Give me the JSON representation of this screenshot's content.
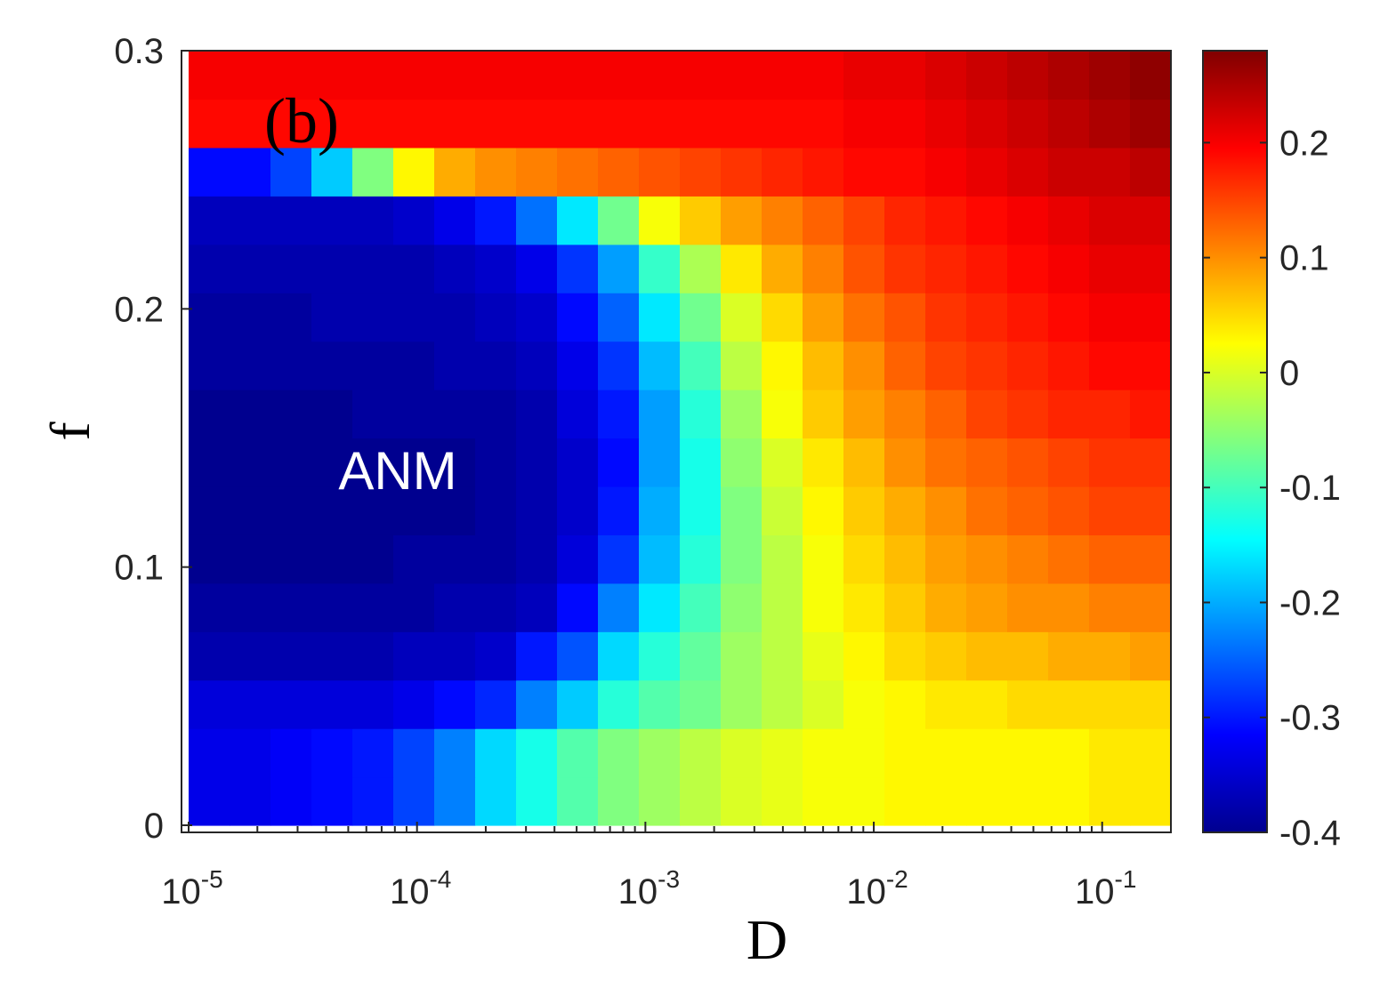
{
  "chart_data": {
    "type": "heatmap",
    "panel_label": "(b)",
    "region_label": "ANM",
    "xlabel": "D",
    "ylabel": "f",
    "x_scale": "log",
    "xlim": [
      1e-05,
      0.2
    ],
    "ylim": [
      0,
      0.3
    ],
    "x_ticks": [
      {
        "value": 1e-05,
        "base": "10",
        "exp": "-5"
      },
      {
        "value": 0.0001,
        "base": "10",
        "exp": "-4"
      },
      {
        "value": 0.001,
        "base": "10",
        "exp": "-3"
      },
      {
        "value": 0.01,
        "base": "10",
        "exp": "-2"
      },
      {
        "value": 0.1,
        "base": "10",
        "exp": "-1"
      }
    ],
    "y_ticks": [
      {
        "value": 0,
        "label": "0"
      },
      {
        "value": 0.1,
        "label": "0.1"
      },
      {
        "value": 0.2,
        "label": "0.2"
      },
      {
        "value": 0.3,
        "label": "0.3"
      }
    ],
    "colorbar": {
      "colormap": "jet",
      "range": [
        -0.4,
        0.28
      ],
      "ticks": [
        {
          "value": -0.4,
          "label": "-0.4"
        },
        {
          "value": -0.3,
          "label": "-0.3"
        },
        {
          "value": -0.2,
          "label": "-0.2"
        },
        {
          "value": -0.1,
          "label": "-0.1"
        },
        {
          "value": 0,
          "label": "0"
        },
        {
          "value": 0.1,
          "label": "0.1"
        },
        {
          "value": 0.2,
          "label": "0.2"
        }
      ]
    },
    "rows_f": [
      0.0,
      0.02,
      0.04,
      0.06,
      0.08,
      0.1,
      0.12,
      0.14,
      0.16,
      0.18,
      0.2,
      0.22,
      0.24,
      0.26,
      0.28,
      0.3
    ],
    "cols_D": [
      1e-05,
      1.55e-05,
      2.4e-05,
      3.7e-05,
      5.7e-05,
      8.8e-05,
      0.000136,
      0.00021,
      0.000325,
      0.0005,
      0.00078,
      0.0012,
      0.00186,
      0.00288,
      0.00445,
      0.0069,
      0.0107,
      0.0165,
      0.0255,
      0.0395,
      0.061,
      0.094,
      0.145,
      0.2
    ],
    "z": [
      [
        -0.33,
        -0.33,
        -0.32,
        -0.31,
        -0.3,
        -0.27,
        -0.23,
        -0.17,
        -0.13,
        -0.09,
        -0.06,
        -0.04,
        -0.02,
        0.0,
        0.01,
        0.02,
        0.02,
        0.03,
        0.03,
        0.03,
        0.03,
        0.03,
        0.04,
        0.04
      ],
      [
        -0.33,
        -0.33,
        -0.32,
        -0.31,
        -0.3,
        -0.27,
        -0.23,
        -0.17,
        -0.13,
        -0.09,
        -0.06,
        -0.04,
        -0.02,
        0.0,
        0.01,
        0.02,
        0.02,
        0.03,
        0.03,
        0.03,
        0.03,
        0.03,
        0.04,
        0.04
      ],
      [
        -0.34,
        -0.34,
        -0.34,
        -0.34,
        -0.34,
        -0.33,
        -0.31,
        -0.29,
        -0.23,
        -0.18,
        -0.12,
        -0.09,
        -0.07,
        -0.04,
        -0.02,
        0.0,
        0.02,
        0.03,
        0.04,
        0.04,
        0.05,
        0.05,
        0.05,
        0.05
      ],
      [
        -0.37,
        -0.37,
        -0.37,
        -0.37,
        -0.37,
        -0.36,
        -0.36,
        -0.35,
        -0.3,
        -0.26,
        -0.17,
        -0.12,
        -0.08,
        -0.04,
        -0.02,
        0.01,
        0.03,
        0.05,
        0.06,
        0.07,
        0.07,
        0.08,
        0.08,
        0.09
      ],
      [
        -0.38,
        -0.38,
        -0.38,
        -0.38,
        -0.38,
        -0.38,
        -0.37,
        -0.37,
        -0.36,
        -0.31,
        -0.23,
        -0.16,
        -0.1,
        -0.05,
        -0.02,
        0.02,
        0.04,
        0.06,
        0.08,
        0.09,
        0.1,
        0.1,
        0.11,
        0.11
      ],
      [
        -0.39,
        -0.39,
        -0.39,
        -0.39,
        -0.39,
        -0.38,
        -0.38,
        -0.38,
        -0.37,
        -0.34,
        -0.28,
        -0.19,
        -0.12,
        -0.06,
        -0.02,
        0.02,
        0.05,
        0.07,
        0.09,
        0.1,
        0.11,
        0.12,
        0.13,
        0.13
      ],
      [
        -0.39,
        -0.39,
        -0.39,
        -0.39,
        -0.39,
        -0.39,
        -0.39,
        -0.38,
        -0.37,
        -0.35,
        -0.3,
        -0.2,
        -0.13,
        -0.06,
        -0.01,
        0.03,
        0.06,
        0.08,
        0.1,
        0.12,
        0.13,
        0.14,
        0.15,
        0.15
      ],
      [
        -0.39,
        -0.39,
        -0.39,
        -0.39,
        -0.39,
        -0.39,
        -0.39,
        -0.38,
        -0.37,
        -0.35,
        -0.31,
        -0.21,
        -0.13,
        -0.05,
        0.0,
        0.04,
        0.07,
        0.1,
        0.12,
        0.13,
        0.14,
        0.15,
        0.16,
        0.16
      ],
      [
        -0.39,
        -0.39,
        -0.39,
        -0.39,
        -0.38,
        -0.38,
        -0.38,
        -0.38,
        -0.37,
        -0.34,
        -0.3,
        -0.21,
        -0.12,
        -0.04,
        0.02,
        0.06,
        0.09,
        0.11,
        0.13,
        0.15,
        0.16,
        0.17,
        0.17,
        0.18
      ],
      [
        -0.38,
        -0.38,
        -0.38,
        -0.38,
        -0.38,
        -0.38,
        -0.37,
        -0.37,
        -0.36,
        -0.33,
        -0.28,
        -0.19,
        -0.1,
        -0.02,
        0.03,
        0.07,
        0.1,
        0.13,
        0.15,
        0.16,
        0.17,
        0.18,
        0.19,
        0.19
      ],
      [
        -0.38,
        -0.38,
        -0.38,
        -0.37,
        -0.37,
        -0.37,
        -0.37,
        -0.36,
        -0.35,
        -0.31,
        -0.25,
        -0.16,
        -0.07,
        0.0,
        0.05,
        0.09,
        0.12,
        0.14,
        0.16,
        0.17,
        0.18,
        0.19,
        0.2,
        0.2
      ],
      [
        -0.37,
        -0.37,
        -0.37,
        -0.37,
        -0.37,
        -0.37,
        -0.36,
        -0.35,
        -0.33,
        -0.28,
        -0.21,
        -0.11,
        -0.03,
        0.04,
        0.08,
        0.11,
        0.14,
        0.16,
        0.17,
        0.18,
        0.19,
        0.2,
        0.21,
        0.21
      ],
      [
        -0.36,
        -0.36,
        -0.36,
        -0.36,
        -0.36,
        -0.35,
        -0.33,
        -0.3,
        -0.24,
        -0.16,
        -0.07,
        0.02,
        0.06,
        0.09,
        0.11,
        0.13,
        0.15,
        0.17,
        0.18,
        0.19,
        0.2,
        0.21,
        0.22,
        0.22
      ],
      [
        -0.31,
        -0.31,
        -0.27,
        -0.18,
        -0.06,
        0.03,
        0.08,
        0.1,
        0.11,
        0.12,
        0.13,
        0.14,
        0.15,
        0.16,
        0.17,
        0.18,
        0.19,
        0.19,
        0.2,
        0.21,
        0.22,
        0.23,
        0.23,
        0.24
      ],
      [
        0.19,
        0.19,
        0.19,
        0.19,
        0.19,
        0.19,
        0.19,
        0.19,
        0.19,
        0.19,
        0.19,
        0.19,
        0.19,
        0.19,
        0.19,
        0.19,
        0.2,
        0.2,
        0.21,
        0.22,
        0.23,
        0.24,
        0.25,
        0.26
      ],
      [
        0.2,
        0.2,
        0.2,
        0.2,
        0.2,
        0.2,
        0.2,
        0.2,
        0.2,
        0.2,
        0.2,
        0.2,
        0.2,
        0.2,
        0.2,
        0.2,
        0.21,
        0.21,
        0.22,
        0.23,
        0.24,
        0.25,
        0.26,
        0.27
      ]
    ]
  }
}
